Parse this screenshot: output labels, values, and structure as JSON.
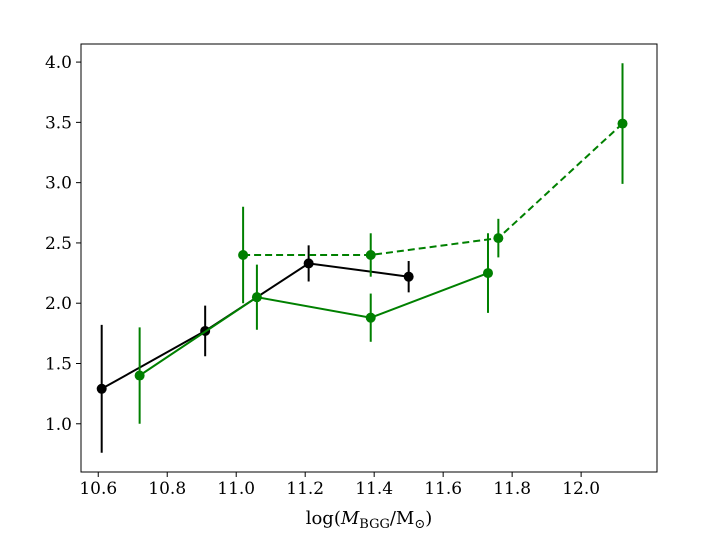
{
  "chart_data": {
    "type": "line",
    "title": "",
    "xlabel": "log(M_BGG/M_⊙)",
    "ylabel": "",
    "xlim": [
      10.55,
      12.22
    ],
    "ylim": [
      0.6,
      4.15
    ],
    "xticks": [
      "10.6",
      "10.8",
      "11.0",
      "11.2",
      "11.4",
      "11.6",
      "11.8",
      "12.0"
    ],
    "yticks": [
      "1.0",
      "1.5",
      "2.0",
      "2.5",
      "3.0",
      "3.5",
      "4.0"
    ],
    "grid": false,
    "series": [
      {
        "color": "#000000",
        "style": "solid",
        "points": [
          {
            "x": 10.61,
            "y": 1.29,
            "err": 0.53
          },
          {
            "x": 10.91,
            "y": 1.77,
            "err": 0.21
          },
          {
            "x": 11.21,
            "y": 2.33,
            "err": 0.15
          },
          {
            "x": 11.5,
            "y": 2.22,
            "err": 0.13
          }
        ]
      },
      {
        "color": "#008000",
        "style": "solid",
        "points": [
          {
            "x": 10.72,
            "y": 1.4,
            "err": 0.4
          },
          {
            "x": 11.06,
            "y": 2.05,
            "err": 0.27
          },
          {
            "x": 11.39,
            "y": 1.88,
            "err": 0.2
          },
          {
            "x": 11.73,
            "y": 2.25,
            "err": 0.33
          }
        ]
      },
      {
        "color": "#008000",
        "style": "dashed",
        "points": [
          {
            "x": 11.02,
            "y": 2.4,
            "err": 0.4
          },
          {
            "x": 11.39,
            "y": 2.4,
            "err": 0.18
          },
          {
            "x": 11.76,
            "y": 2.54,
            "err": 0.16
          },
          {
            "x": 12.12,
            "y": 3.49,
            "err": 0.5
          }
        ]
      }
    ]
  }
}
